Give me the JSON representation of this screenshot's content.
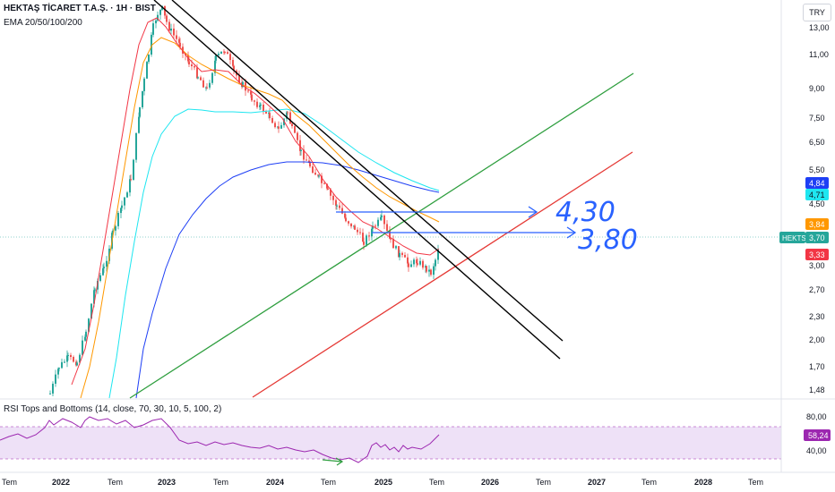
{
  "header": {
    "symbol_line": "HEKTAŞ TİCARET T.A.Ş. · 1H · BIST",
    "indicator_line": "EMA 20/50/100/200"
  },
  "currency_button": "TRY",
  "price_axis_labels": [
    "13,00",
    "11,00",
    "9,00",
    "7,50",
    "6,50",
    "5,50",
    "4,50",
    "3,00",
    "2,70",
    "2,30",
    "2,00",
    "1,70",
    "1,48"
  ],
  "price_badges": [
    {
      "text": "4,84",
      "color": "#1e3ff5"
    },
    {
      "text": "4,71",
      "color": "#1ee6f0"
    },
    {
      "text": "3,84",
      "color": "#ff9800"
    },
    {
      "text": "3,70",
      "color": "#26a69a"
    },
    {
      "text": "3,33",
      "color": "#f23645"
    }
  ],
  "ticker_badge": "HEKTS",
  "annotations": [
    "4,30",
    "3,80"
  ],
  "rsi": {
    "title": "RSI Tops and Bottoms (14, close, 70, 30, 10, 5, 100, 2)",
    "axis_labels": [
      "80,00",
      "40,00"
    ],
    "value_badge": "58,24"
  },
  "time_axis_labels": [
    "Tem",
    "2022",
    "Tem",
    "2023",
    "Tem",
    "2024",
    "Tem",
    "2025",
    "Tem",
    "2026",
    "Tem",
    "2027",
    "Tem",
    "2028",
    "Tem"
  ],
  "colors": {
    "up": "#26a69a",
    "down": "#ef5350",
    "ema20": "#f23645",
    "ema50": "#ff9800",
    "ema100": "#1ee6f0",
    "ema200": "#1e3ff5",
    "channel_green": "#2e9e3e",
    "channel_red": "#e53935",
    "trend_black": "#000000",
    "annotation_blue": "#2962ff",
    "rsi_line": "#9c27b0",
    "rsi_band": "#ead9f5"
  }
}
